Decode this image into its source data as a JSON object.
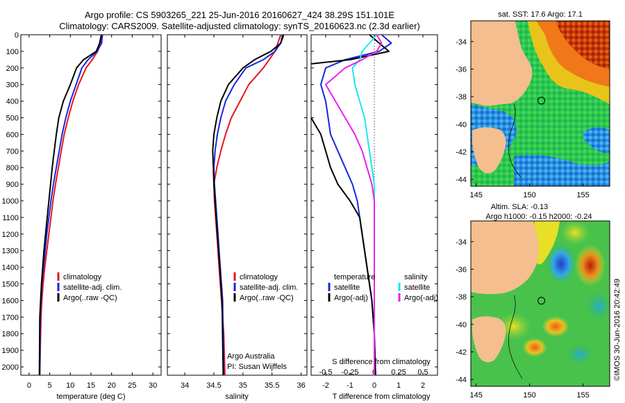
{
  "titles": {
    "line1": "Argo profile: CS 5903265_221 25-Jun-2016 20160627_424 38.29S 151.101E",
    "line2": "Climatology: CARS2009. Satellite-adjusted climatology: synTS_20160623.nc (2.3d earlier)"
  },
  "colors": {
    "climatology": "#e8141e",
    "satellite_clim": "#1428dc",
    "argo": "#000000",
    "satellite_salinity": "#19e6f0",
    "argo_salinity": "#ee1ef0"
  },
  "chart_data": [
    {
      "type": "line",
      "panel": "temperature",
      "xlabel": "temperature (deg C)",
      "xlim": [
        -2,
        32
      ],
      "xticks": [
        0,
        5,
        10,
        15,
        20,
        25,
        30
      ],
      "ylim": [
        2050,
        0
      ],
      "yticks": [
        0,
        100,
        200,
        300,
        400,
        500,
        600,
        700,
        800,
        900,
        1000,
        1100,
        1200,
        1300,
        1400,
        1500,
        1600,
        1700,
        1800,
        1900,
        2000
      ],
      "legend": [
        "climatology",
        "satellite-adj. clim.",
        "Argo(..raw -QC)"
      ],
      "series": [
        {
          "name": "climatology",
          "color_key": "climatology",
          "x": [
            17.6,
            17.4,
            16.6,
            15.3,
            13.8,
            12.0,
            10.6,
            9.5,
            8.5,
            7.8,
            7.1,
            6.4,
            5.8,
            5.3,
            4.8,
            4.3,
            3.8,
            3.4,
            3.1,
            2.9,
            2.8,
            2.6
          ],
          "y": [
            0,
            50,
            100,
            150,
            200,
            300,
            400,
            500,
            600,
            700,
            800,
            900,
            1000,
            1100,
            1200,
            1300,
            1400,
            1500,
            1600,
            1700,
            1800,
            2050
          ]
        },
        {
          "name": "satellite-adj. clim.",
          "color_key": "satellite_clim",
          "x": [
            17.8,
            17.6,
            16.5,
            14.3,
            12.8,
            11.4,
            10.0,
            8.9,
            8.0,
            7.3,
            6.6,
            5.9,
            5.3,
            4.8,
            4.3,
            3.9,
            3.5,
            3.1,
            2.9,
            2.7,
            2.6
          ],
          "y": [
            0,
            50,
            100,
            150,
            200,
            300,
            400,
            500,
            600,
            700,
            800,
            900,
            1000,
            1100,
            1200,
            1300,
            1400,
            1500,
            1600,
            1700,
            2050
          ]
        },
        {
          "name": "Argo(..raw -QC)",
          "color_key": "argo",
          "x": [
            17.5,
            17.1,
            16.3,
            13.2,
            11.5,
            10.0,
            8.3,
            7.2,
            6.6,
            6.1,
            5.6,
            5.2,
            4.8,
            4.4,
            4.0,
            3.6,
            3.3,
            3.0,
            2.8,
            2.6,
            2.5
          ],
          "y": [
            0,
            50,
            100,
            150,
            200,
            300,
            400,
            500,
            600,
            700,
            800,
            900,
            1000,
            1100,
            1200,
            1300,
            1400,
            1500,
            1600,
            1700,
            2050
          ]
        }
      ]
    },
    {
      "type": "line",
      "panel": "salinity",
      "xlabel": "salinity",
      "xlim": [
        33.7,
        36.1
      ],
      "xticks": [
        34,
        34.5,
        35,
        35.5,
        36
      ],
      "ylim": [
        2050,
        0
      ],
      "legend": [
        "climatology",
        "satellite-adj. clim.",
        "Argo(..raw -QC)"
      ],
      "annotations": [
        "Argo Australia",
        "PI: Susan Wijffels"
      ],
      "series": [
        {
          "name": "climatology",
          "color_key": "climatology",
          "x": [
            35.65,
            35.6,
            35.55,
            35.45,
            35.35,
            35.1,
            34.95,
            34.8,
            34.7,
            34.62,
            34.55,
            34.5,
            34.51,
            34.53,
            34.55,
            34.57,
            34.59,
            34.61,
            34.63,
            34.65,
            34.67,
            34.69
          ],
          "y": [
            0,
            50,
            100,
            150,
            200,
            300,
            400,
            500,
            600,
            700,
            800,
            900,
            1000,
            1100,
            1200,
            1300,
            1400,
            1500,
            1600,
            1700,
            1800,
            2050
          ]
        },
        {
          "name": "satellite-adj. clim.",
          "color_key": "satellite_clim",
          "x": [
            35.68,
            35.65,
            35.55,
            35.35,
            35.05,
            34.85,
            34.7,
            34.62,
            34.56,
            34.52,
            34.5,
            34.51,
            34.53,
            34.55,
            34.57,
            34.59,
            34.61,
            34.63,
            34.65,
            34.67
          ],
          "y": [
            0,
            50,
            100,
            150,
            200,
            300,
            400,
            500,
            600,
            700,
            800,
            900,
            1000,
            1100,
            1200,
            1300,
            1400,
            1500,
            1600,
            2050
          ]
        },
        {
          "name": "Argo(..raw -QC)",
          "color_key": "argo",
          "x": [
            35.7,
            35.65,
            35.48,
            35.2,
            35.0,
            34.75,
            34.62,
            34.55,
            34.5,
            34.48,
            34.49,
            34.5,
            34.52,
            34.54,
            34.56,
            34.58,
            34.6,
            34.62,
            34.64,
            34.66
          ],
          "y": [
            0,
            50,
            100,
            150,
            200,
            300,
            400,
            500,
            600,
            700,
            800,
            900,
            1000,
            1100,
            1200,
            1300,
            1400,
            1500,
            1600,
            2050
          ]
        }
      ]
    },
    {
      "type": "line",
      "panel": "differences",
      "xlabel": "T difference from climatology",
      "xlabel_top": "S difference from climatology",
      "xlim": [
        -2.6,
        2.6
      ],
      "xticks": [
        -2,
        -1,
        0,
        1,
        2
      ],
      "xtick_labels_S": [
        "-0.5",
        "-0.25",
        "0",
        "0.25",
        "0.5"
      ],
      "ylim": [
        2050,
        0
      ],
      "legend_temperature": [
        "temperature",
        "satellite",
        "Argo(-adj)"
      ],
      "legend_salinity": [
        "salinity",
        "satellite",
        "Argo(-adj)"
      ],
      "series": [
        {
          "name": "satellite",
          "color_key": "satellite_clim",
          "x": [
            0.3,
            0.7,
            0.2,
            -1.2,
            -2.0,
            -2.2,
            -2.0,
            -1.9,
            -1.8,
            -1.5,
            -1.2,
            -0.9,
            -0.7,
            -0.6,
            -0.5,
            -0.4,
            -0.3,
            -0.2,
            -0.1,
            0.0,
            0.05
          ],
          "y": [
            0,
            50,
            100,
            150,
            200,
            300,
            400,
            500,
            600,
            700,
            800,
            900,
            1000,
            1100,
            1200,
            1300,
            1400,
            1500,
            1600,
            1800,
            2050
          ]
        },
        {
          "name": "Argo(-adj)",
          "color_key": "argo",
          "x": [
            -0.2,
            0.2,
            0.6,
            -1.0,
            -4.2,
            -3.8,
            -3.0,
            -2.6,
            -2.2,
            -2.0,
            -1.8,
            -1.5,
            -1.0,
            -0.6,
            -0.5,
            -0.4,
            -0.3,
            -0.2,
            -0.1,
            0.0,
            0.05
          ],
          "y": [
            0,
            50,
            100,
            150,
            200,
            300,
            400,
            500,
            600,
            700,
            800,
            900,
            1000,
            1100,
            1200,
            1300,
            1400,
            1500,
            1600,
            1800,
            2050
          ]
        },
        {
          "name": "satellite",
          "color_key": "satellite_salinity",
          "x": [
            0.1,
            -0.2,
            -0.5,
            -0.6,
            -0.9,
            -0.8,
            -0.6,
            -0.4,
            -0.3,
            -0.2,
            -0.1,
            0.0,
            0.0,
            0.0,
            0.0,
            0.0,
            0.0,
            0.0,
            0.0
          ],
          "y": [
            0,
            50,
            100,
            150,
            200,
            300,
            400,
            500,
            600,
            700,
            800,
            900,
            1000,
            1100,
            1200,
            1300,
            1400,
            1500,
            2050
          ]
        },
        {
          "name": "Argo(-adj)",
          "color_key": "argo_salinity",
          "x": [
            0.1,
            0.3,
            0.1,
            -0.5,
            -1.2,
            -2.0,
            -1.6,
            -1.2,
            -0.8,
            -0.5,
            -0.3,
            -0.1,
            0.0,
            0.0,
            0.0,
            0.0,
            0.0,
            0.0,
            0.0
          ],
          "y": [
            0,
            50,
            100,
            150,
            200,
            300,
            400,
            500,
            600,
            700,
            800,
            900,
            1000,
            1100,
            1200,
            1300,
            1400,
            1500,
            2050
          ]
        }
      ]
    }
  ],
  "maps": [
    {
      "title": "sat. SST: 17.6 Argo: 17.1",
      "xlim": [
        144.5,
        157.5
      ],
      "ylim": [
        -44.5,
        -32.5
      ],
      "xticks": [
        145,
        150,
        155
      ],
      "yticks": [
        -34,
        -36,
        -38,
        -40,
        -42,
        -44
      ],
      "marker": {
        "lon": 151.101,
        "lat": -38.29
      }
    },
    {
      "title1": "Altim. SLA: -0.13",
      "title2": "Argo h1000: -0.15 h2000: -0.24",
      "xlim": [
        144.5,
        157.5
      ],
      "ylim": [
        -44.5,
        -32.5
      ],
      "xticks": [
        145,
        150,
        155
      ],
      "yticks": [
        -34,
        -36,
        -38,
        -40,
        -42,
        -44
      ],
      "marker": {
        "lon": 151.101,
        "lat": -38.29
      }
    }
  ],
  "credit": "©IMOS 30-Jun-2016 20:42:49"
}
